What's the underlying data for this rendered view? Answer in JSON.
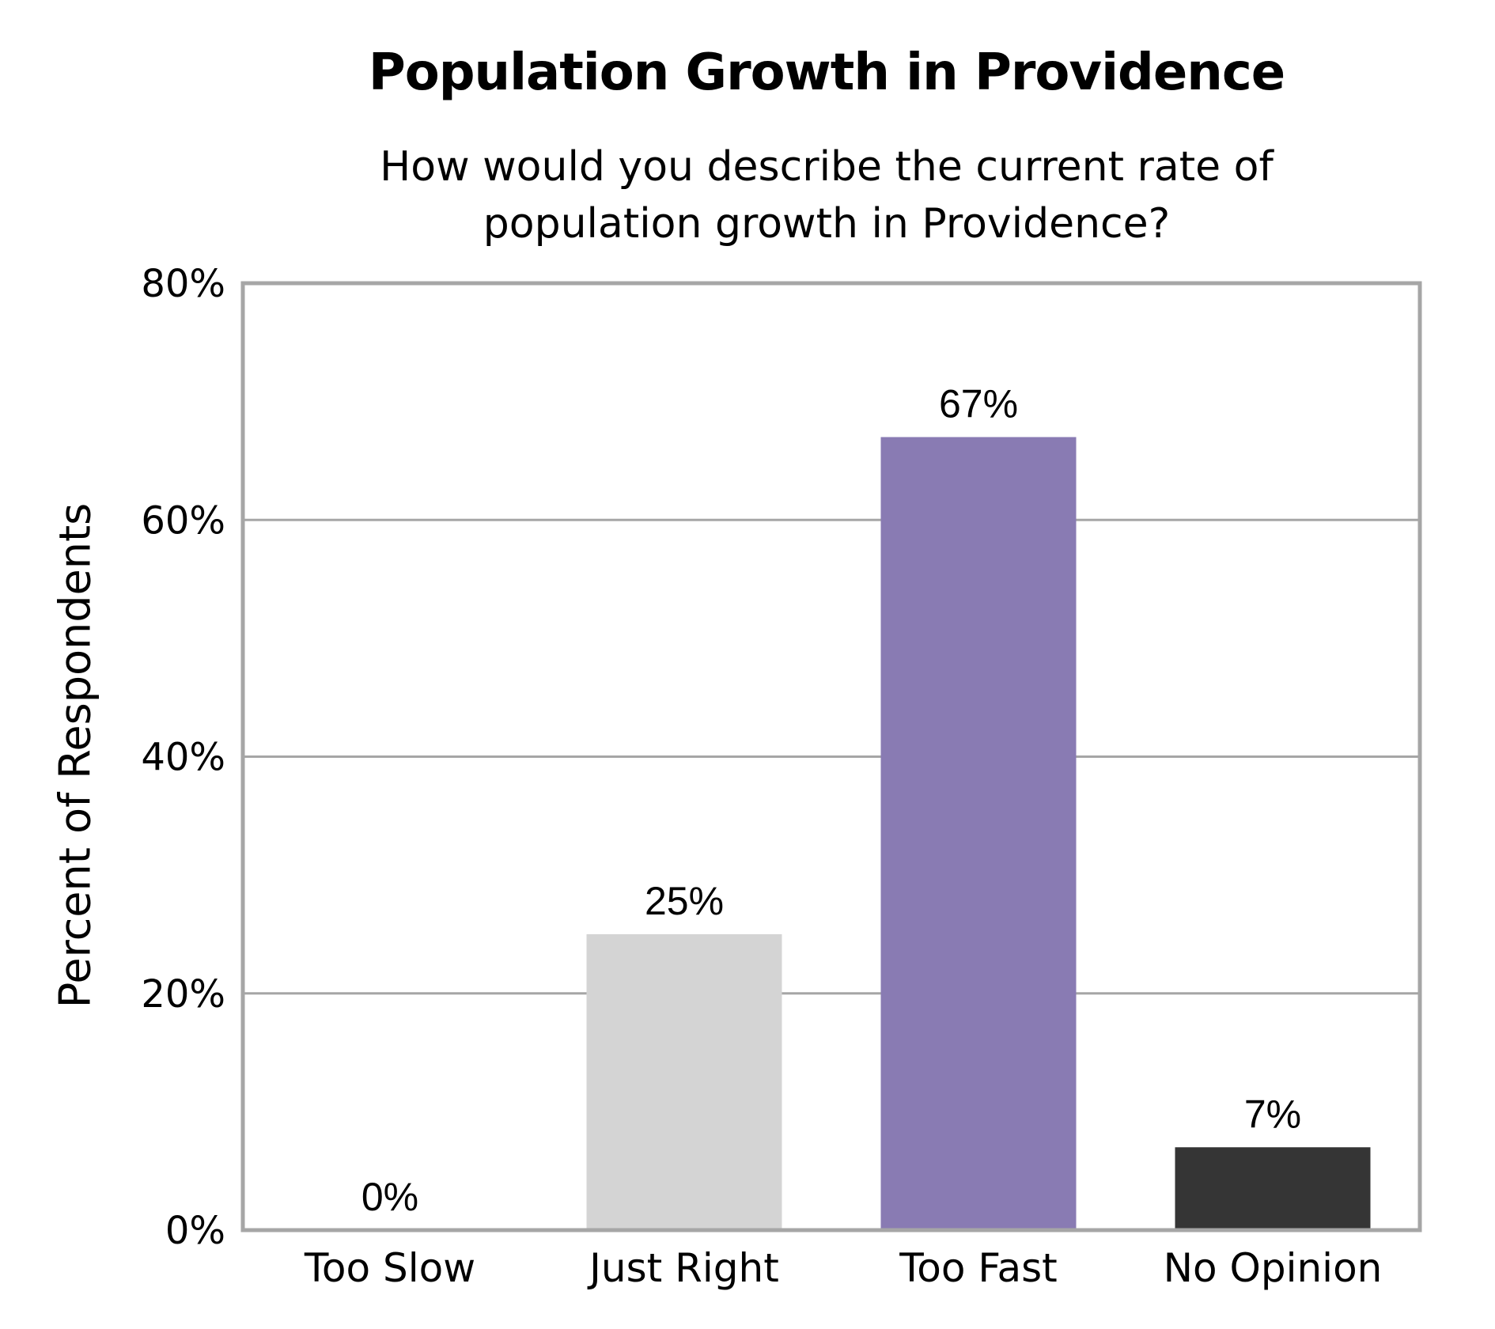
{
  "chart_data": {
    "type": "bar",
    "title": "Population Growth in Providence",
    "subtitle_lines": [
      "How would you describe the current rate of",
      "population growth in Providence?"
    ],
    "xlabel": "",
    "ylabel": "Percent of Respondents",
    "categories": [
      "Too Slow",
      "Just Right",
      "Too Fast",
      "No Opinion"
    ],
    "values": [
      0,
      25,
      67,
      7
    ],
    "data_labels": [
      "0%",
      "25%",
      "67%",
      "7%"
    ],
    "colors": [
      "#d4d4d4",
      "#d4d4d4",
      "#897bb3",
      "#353535"
    ],
    "ylim": [
      0,
      80
    ],
    "yticks": [
      0,
      20,
      40,
      60,
      80
    ],
    "ytick_labels": [
      "0%",
      "20%",
      "40%",
      "60%",
      "80%"
    ],
    "grid": true,
    "legend": "none",
    "frame_color": "#a6a6a6"
  }
}
